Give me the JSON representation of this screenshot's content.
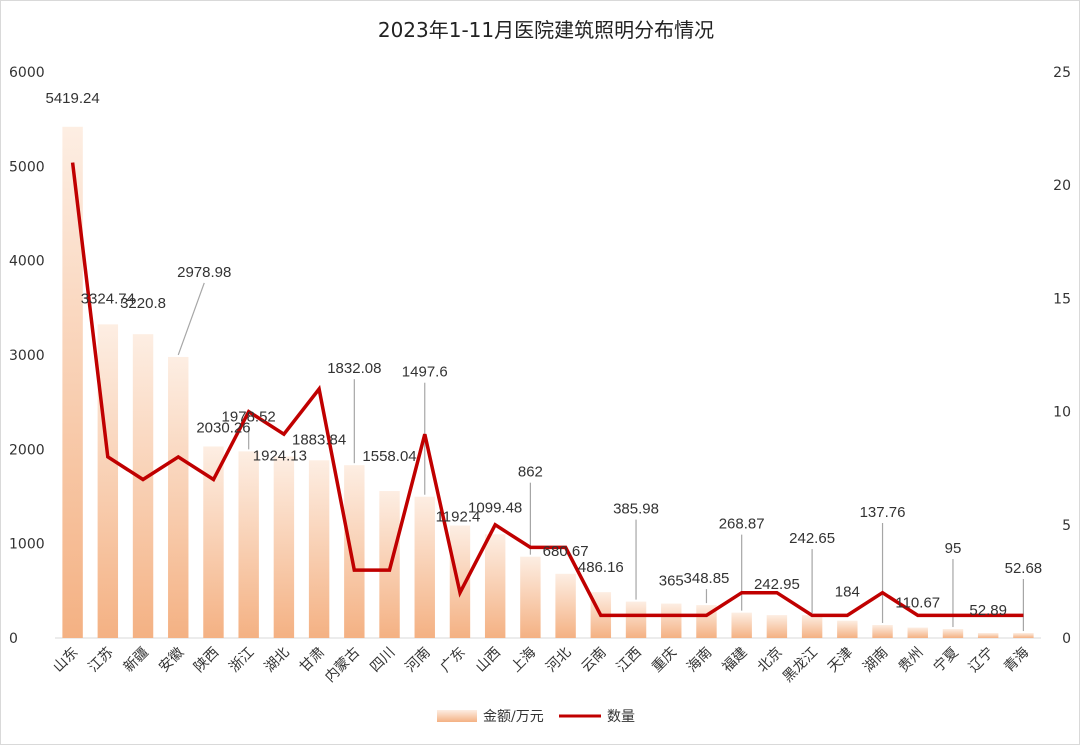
{
  "chart_data": {
    "type": "bar",
    "title": "2023年1-11月医院建筑照明分布情况",
    "categories": [
      "山东",
      "江苏",
      "新疆",
      "安徽",
      "陕西",
      "浙江",
      "湖北",
      "甘肃",
      "内蒙古",
      "四川",
      "河南",
      "广东",
      "山西",
      "上海",
      "河北",
      "云南",
      "江西",
      "重庆",
      "海南",
      "福建",
      "北京",
      "黑龙江",
      "天津",
      "湖南",
      "贵州",
      "宁夏",
      "辽宁",
      "青海"
    ],
    "series": [
      {
        "name": "金额/万元",
        "type": "bar",
        "axis": "left",
        "color": "#f4b183",
        "values": [
          5419.24,
          3324.74,
          3220.8,
          2978.98,
          2030.26,
          1978.52,
          1924.13,
          1883.84,
          1832.08,
          1558.04,
          1497.6,
          1192.4,
          1099.48,
          862,
          680.67,
          486.16,
          385.98,
          365,
          348.85,
          268.87,
          242.95,
          242.65,
          184,
          137.76,
          110.67,
          95,
          52.89,
          52.68
        ]
      },
      {
        "name": "数量",
        "type": "line",
        "axis": "right",
        "color": "#c00000",
        "values": [
          21,
          8,
          7,
          8,
          7,
          10,
          9,
          11,
          3,
          3,
          9,
          2,
          5,
          4,
          4,
          1,
          1,
          1,
          1,
          2,
          2,
          1,
          1,
          2,
          1,
          1,
          1,
          1
        ]
      }
    ],
    "data_labels": [
      "5419.24",
      "3324.74",
      "3220.8",
      "2978.98",
      "2030.26",
      "1978.52",
      "1924.13",
      "1883.84",
      "1832.08",
      "1558.04",
      "1497.6",
      "1192.4",
      "1099.48",
      "862",
      "680.67",
      "486.16",
      "385.98",
      "365",
      "348.85",
      "268.87",
      "242.95",
      "242.65",
      "184",
      "137.76",
      "110.67",
      "95",
      "52.89",
      "52.68"
    ],
    "y_left": {
      "min": 0,
      "max": 6000,
      "ticks": [
        "0",
        "1000",
        "2000",
        "3000",
        "4000",
        "5000",
        "6000"
      ]
    },
    "y_right": {
      "min": 0,
      "max": 25,
      "ticks": [
        "0",
        "5",
        "10",
        "15",
        "20",
        "25"
      ]
    },
    "legend": {
      "position": "bottom",
      "items": [
        "金额/万元",
        "数量"
      ]
    },
    "grid": false
  }
}
